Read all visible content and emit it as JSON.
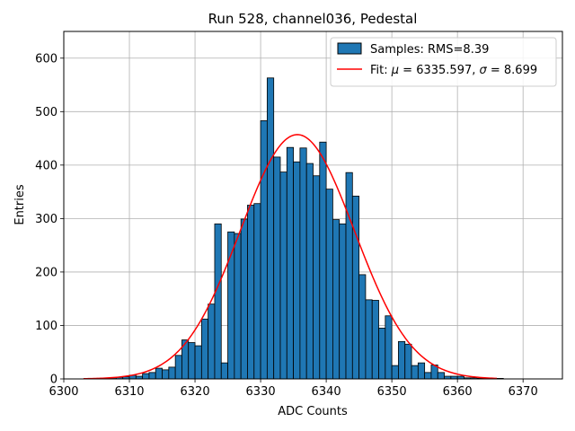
{
  "chart_data": {
    "type": "bar",
    "title": "Run 528, channel036, Pedestal",
    "xlabel": "ADC Counts",
    "ylabel": "Entries",
    "xlim": [
      6300,
      6376
    ],
    "ylim": [
      0,
      650
    ],
    "xticks": [
      6300,
      6310,
      6320,
      6330,
      6340,
      6350,
      6360,
      6370
    ],
    "yticks": [
      0,
      100,
      200,
      300,
      400,
      500,
      600
    ],
    "grid": true,
    "legend_position": "top-right",
    "bin_width": 1,
    "bins_start": [
      6305,
      6306,
      6307,
      6308,
      6309,
      6310,
      6311,
      6312,
      6313,
      6314,
      6315,
      6316,
      6317,
      6318,
      6319,
      6320,
      6321,
      6322,
      6323,
      6324,
      6325,
      6326,
      6327,
      6328,
      6329,
      6330,
      6331,
      6332,
      6333,
      6334,
      6335,
      6336,
      6337,
      6338,
      6339,
      6340,
      6341,
      6342,
      6343,
      6344,
      6345,
      6346,
      6347,
      6348,
      6349,
      6350,
      6351,
      6352,
      6353,
      6354,
      6355,
      6356,
      6357,
      6358,
      6359,
      6360,
      6361,
      6362,
      6363,
      6364,
      6365,
      6366
    ],
    "counts": [
      1,
      1,
      2,
      3,
      4,
      7,
      5,
      10,
      12,
      20,
      17,
      22,
      44,
      73,
      68,
      62,
      112,
      140,
      290,
      30,
      275,
      272,
      299,
      325,
      328,
      483,
      563,
      415,
      387,
      433,
      406,
      432,
      403,
      380,
      443,
      355,
      298,
      290,
      386,
      342,
      195,
      148,
      147,
      95,
      118,
      25,
      70,
      65,
      25,
      30,
      12,
      26,
      12,
      5,
      5,
      5,
      2,
      2,
      1,
      1,
      1,
      1
    ],
    "series": [
      {
        "name": "Samples: RMS=8.39",
        "kind": "histogram",
        "color": "#1f77b4",
        "edgecolor": "#000000"
      },
      {
        "name": "Fit: μ = 6335.597, σ = 8.699",
        "kind": "line",
        "color": "#ff0000",
        "mu": 6335.597,
        "sigma": 8.699,
        "amplitude": 457,
        "x_range": [
          6303,
          6366
        ]
      }
    ]
  },
  "legend": {
    "hist_label": "Samples: RMS=8.39",
    "fit_label_prefix": "Fit: ",
    "fit_mu_symbol": "μ",
    "fit_mu_text": " = 6335.597, ",
    "fit_sigma_symbol": "σ",
    "fit_sigma_text": " = 8.699"
  }
}
